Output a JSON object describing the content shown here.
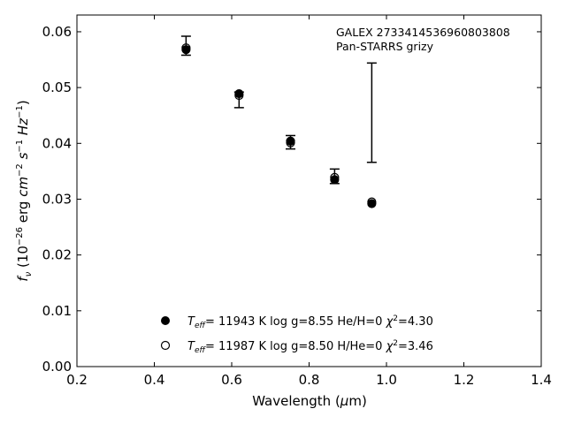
{
  "chart_data": {
    "type": "scatter",
    "title": "",
    "annotation": {
      "line1": "GALEX 2733414536960803808",
      "line2": "Pan-STARRS grizy"
    },
    "xlabel": "Wavelength (μm)",
    "ylabel": "f_ν (10^−26 erg cm^−2 s^−1 Hz^−1)",
    "xlim": [
      0.2,
      1.4
    ],
    "ylim": [
      0.0,
      0.063
    ],
    "xticks": [
      0.2,
      0.4,
      0.6,
      0.8,
      1.0,
      1.2,
      1.4
    ],
    "xtick_labels": [
      "0.2",
      "0.4",
      "0.6",
      "0.8",
      "1.0",
      "1.2",
      "1.4"
    ],
    "yticks": [
      0.0,
      0.01,
      0.02,
      0.03,
      0.04,
      0.05,
      0.06
    ],
    "ytick_labels": [
      "0.00",
      "0.01",
      "0.02",
      "0.03",
      "0.04",
      "0.05",
      "0.06"
    ],
    "grid": false,
    "legend_position": "bottom-center",
    "observed": {
      "x": [
        0.482,
        0.619,
        0.752,
        0.866,
        0.962
      ],
      "y": [
        0.0575,
        0.0478,
        0.0402,
        0.0341,
        0.0455
      ],
      "yerr": [
        0.0017,
        0.0014,
        0.0012,
        0.0013,
        0.0089
      ]
    },
    "series": [
      {
        "label": "T_eff= 11943 K  log g=8.55  He/H=0  χ²=4.30",
        "marker": "filled",
        "x": [
          0.482,
          0.619,
          0.752,
          0.866,
          0.962
        ],
        "y": [
          0.0568,
          0.0489,
          0.0404,
          0.0335,
          0.0292
        ]
      },
      {
        "label": "T_eff= 11987 K  log g=8.50  H/He=0  χ²=3.46",
        "marker": "open",
        "x": [
          0.482,
          0.619,
          0.752,
          0.866,
          0.962
        ],
        "y": [
          0.0571,
          0.0486,
          0.0401,
          0.0339,
          0.0295
        ]
      }
    ]
  }
}
